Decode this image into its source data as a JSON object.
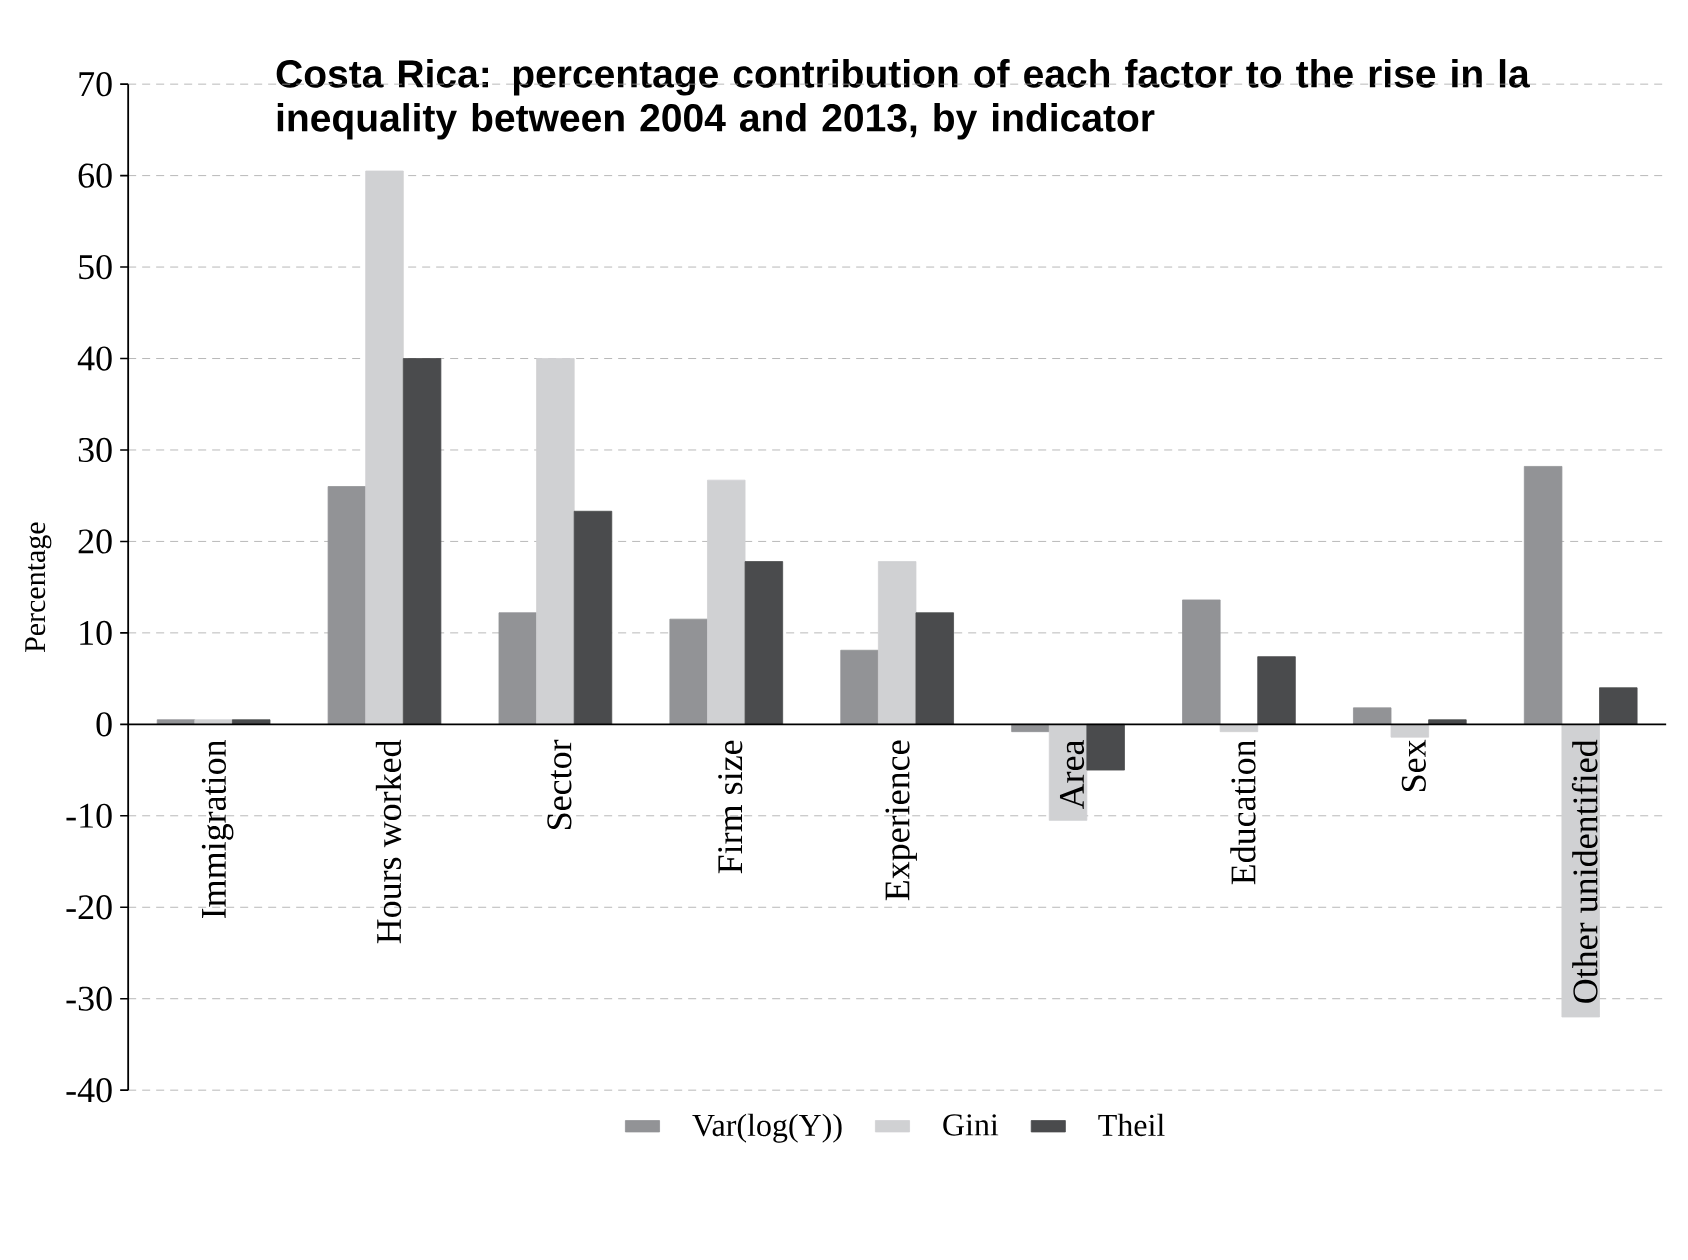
{
  "chart_data": {
    "type": "bar",
    "title": "Costa Rica: percentage contribution of each factor to the rise in la inequality between 2004 and 2013, by indicator",
    "ylabel": "Percentage",
    "categories": [
      "Immigration",
      "Hours worked",
      "Sector",
      "Firm size",
      "Experience",
      "Area",
      "Education",
      "Sex",
      "Other unidentified"
    ],
    "series": [
      {
        "name": "Var(log(Y))",
        "color": "#929396",
        "values": [
          0.5,
          26,
          12.2,
          11.5,
          8.1,
          -0.8,
          13.6,
          1.8,
          28.2
        ]
      },
      {
        "name": "Gini",
        "color": "#d0d1d3",
        "values": [
          0.5,
          60.5,
          40,
          26.7,
          17.8,
          -10.5,
          -0.8,
          -1.4,
          -32
        ]
      },
      {
        "name": "Theil",
        "color": "#4a4b4d",
        "values": [
          0.5,
          40,
          23.3,
          17.8,
          12.2,
          -5,
          7.4,
          0.5,
          4.0
        ]
      }
    ],
    "ylim": [
      -40,
      70
    ],
    "yticks": [
      -40,
      -30,
      -20,
      -10,
      0,
      10,
      20,
      30,
      40,
      50,
      60,
      70
    ],
    "grid": "y",
    "legend": "bottom"
  }
}
